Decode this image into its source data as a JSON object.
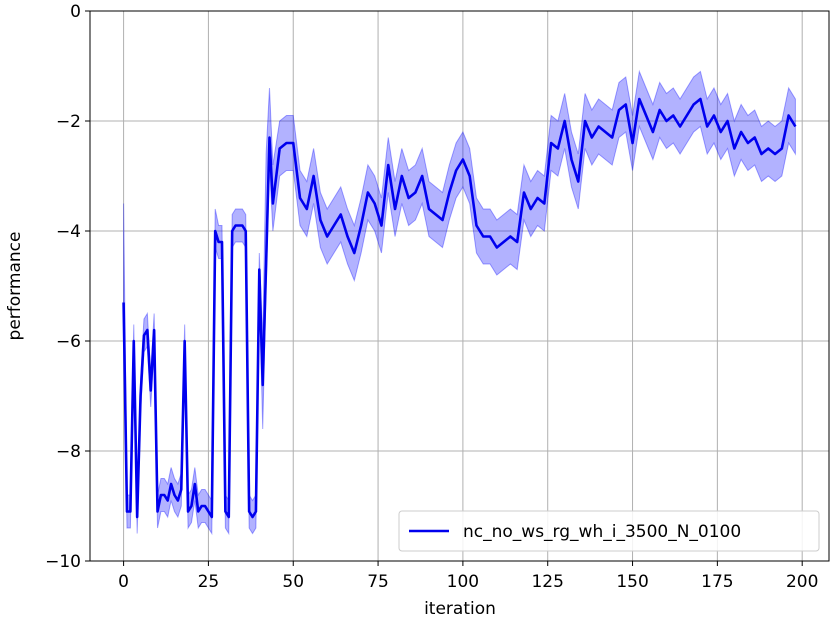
{
  "chart_data": {
    "type": "line",
    "xlabel": "iteration",
    "ylabel": "performance",
    "xlim": [
      -9.9,
      207.9
    ],
    "ylim": [
      -10,
      0
    ],
    "xticks": [
      0,
      25,
      50,
      75,
      100,
      125,
      150,
      175,
      200
    ],
    "yticks": [
      {
        "value": -10,
        "label": "−10"
      },
      {
        "value": -8,
        "label": "−8"
      },
      {
        "value": -6,
        "label": "−6"
      },
      {
        "value": -4,
        "label": "−4"
      },
      {
        "value": -2,
        "label": "−2"
      },
      0
    ],
    "grid": true,
    "legend": "lower right",
    "x": [
      0,
      1,
      2,
      3,
      4,
      5,
      6,
      7,
      8,
      9,
      10,
      11,
      12,
      13,
      14,
      15,
      16,
      17,
      18,
      19,
      20,
      21,
      22,
      23,
      24,
      25,
      26,
      27,
      28,
      29,
      30,
      31,
      32,
      33,
      34,
      35,
      36,
      37,
      38,
      39,
      40,
      41,
      42,
      43,
      44,
      46,
      48,
      50,
      52,
      54,
      56,
      58,
      60,
      62,
      64,
      66,
      68,
      70,
      72,
      74,
      76,
      78,
      80,
      82,
      84,
      86,
      88,
      90,
      92,
      94,
      96,
      98,
      100,
      102,
      104,
      106,
      108,
      110,
      112,
      114,
      116,
      118,
      120,
      122,
      124,
      126,
      128,
      130,
      132,
      134,
      136,
      138,
      140,
      142,
      144,
      146,
      148,
      150,
      152,
      154,
      156,
      158,
      160,
      162,
      164,
      166,
      168,
      170,
      172,
      174,
      176,
      178,
      180,
      182,
      184,
      186,
      188,
      190,
      192,
      194,
      196,
      198
    ],
    "series": [
      {
        "name": "nc_no_ws_rg_wh_i_3500_N_0100",
        "color": "#0000ee",
        "band_color": "#0000ff",
        "values": [
          -5.3,
          -9.1,
          -9.1,
          -6.0,
          -9.2,
          -7.0,
          -5.9,
          -5.8,
          -6.9,
          -5.8,
          -9.1,
          -8.8,
          -8.8,
          -8.9,
          -8.6,
          -8.8,
          -8.9,
          -8.7,
          -6.0,
          -9.1,
          -9.0,
          -8.6,
          -9.1,
          -9.0,
          -9.0,
          -9.1,
          -9.2,
          -4.0,
          -4.2,
          -4.2,
          -9.1,
          -9.2,
          -4.0,
          -3.9,
          -3.9,
          -3.9,
          -4.0,
          -9.1,
          -9.2,
          -9.1,
          -4.7,
          -6.8,
          -4.6,
          -2.3,
          -3.5,
          -2.5,
          -2.4,
          -2.4,
          -3.4,
          -3.6,
          -3.0,
          -3.8,
          -4.1,
          -3.9,
          -3.7,
          -4.1,
          -4.4,
          -3.9,
          -3.3,
          -3.5,
          -3.9,
          -2.8,
          -3.6,
          -3.0,
          -3.4,
          -3.3,
          -3.0,
          -3.6,
          -3.7,
          -3.8,
          -3.3,
          -2.9,
          -2.7,
          -3.0,
          -3.9,
          -4.1,
          -4.1,
          -4.3,
          -4.2,
          -4.1,
          -4.2,
          -3.3,
          -3.6,
          -3.4,
          -3.5,
          -2.4,
          -2.5,
          -2.0,
          -2.7,
          -3.1,
          -2.0,
          -2.3,
          -2.1,
          -2.2,
          -2.3,
          -1.8,
          -1.7,
          -2.4,
          -1.6,
          -1.9,
          -2.2,
          -1.8,
          -2.0,
          -1.9,
          -2.1,
          -1.9,
          -1.7,
          -1.6,
          -2.1,
          -1.9,
          -2.2,
          -2.0,
          -2.5,
          -2.2,
          -2.4,
          -2.3,
          -2.6,
          -2.5,
          -2.6,
          -2.5,
          -1.9,
          -2.1
        ],
        "lower": [
          -5.6,
          -9.4,
          -9.4,
          -6.3,
          -9.5,
          -7.3,
          -6.2,
          -6.1,
          -7.2,
          -6.1,
          -9.4,
          -9.1,
          -9.1,
          -9.2,
          -8.9,
          -9.1,
          -9.2,
          -9.0,
          -6.3,
          -9.4,
          -9.3,
          -8.9,
          -9.4,
          -9.3,
          -9.3,
          -9.4,
          -9.5,
          -4.3,
          -4.5,
          -4.5,
          -9.4,
          -9.5,
          -4.3,
          -4.2,
          -4.2,
          -4.2,
          -4.3,
          -9.4,
          -9.5,
          -9.4,
          -5.0,
          -7.6,
          -5.0,
          -2.8,
          -4.0,
          -3.0,
          -2.9,
          -2.9,
          -3.9,
          -4.1,
          -3.5,
          -4.3,
          -4.6,
          -4.4,
          -4.2,
          -4.6,
          -4.9,
          -4.4,
          -3.8,
          -4.0,
          -4.4,
          -3.3,
          -4.1,
          -3.5,
          -3.9,
          -3.8,
          -3.5,
          -4.1,
          -4.2,
          -4.3,
          -3.8,
          -3.4,
          -3.2,
          -3.5,
          -4.4,
          -4.6,
          -4.6,
          -4.8,
          -4.7,
          -4.6,
          -4.7,
          -3.8,
          -4.1,
          -3.9,
          -4.0,
          -2.9,
          -3.0,
          -2.5,
          -3.2,
          -3.6,
          -2.5,
          -2.8,
          -2.6,
          -2.7,
          -2.8,
          -2.3,
          -2.2,
          -2.9,
          -2.1,
          -2.4,
          -2.7,
          -2.3,
          -2.5,
          -2.4,
          -2.6,
          -2.4,
          -2.2,
          -2.1,
          -2.6,
          -2.4,
          -2.7,
          -2.5,
          -3.0,
          -2.7,
          -2.9,
          -2.8,
          -3.1,
          -3.0,
          -3.1,
          -3.0,
          -2.4,
          -2.6
        ],
        "upper": [
          -3.5,
          -8.8,
          -8.8,
          -5.7,
          -8.9,
          -6.7,
          -5.6,
          -5.5,
          -6.6,
          -5.5,
          -8.8,
          -8.5,
          -8.5,
          -8.6,
          -8.3,
          -8.5,
          -8.6,
          -8.4,
          -5.7,
          -8.8,
          -8.7,
          -8.3,
          -8.8,
          -8.7,
          -8.7,
          -8.8,
          -8.9,
          -3.6,
          -3.9,
          -3.9,
          -8.8,
          -8.9,
          -3.7,
          -3.6,
          -3.6,
          -3.6,
          -3.7,
          -8.8,
          -8.9,
          -8.8,
          -4.4,
          -6.0,
          -2.6,
          -1.4,
          -2.8,
          -2.0,
          -1.9,
          -1.9,
          -2.9,
          -3.1,
          -2.5,
          -3.3,
          -3.6,
          -3.4,
          -3.2,
          -3.6,
          -3.9,
          -3.4,
          -2.8,
          -3.0,
          -3.4,
          -2.3,
          -3.1,
          -2.5,
          -2.9,
          -2.8,
          -2.5,
          -3.1,
          -3.2,
          -3.3,
          -2.8,
          -2.4,
          -2.2,
          -2.5,
          -3.4,
          -3.6,
          -3.6,
          -3.8,
          -3.7,
          -3.6,
          -3.7,
          -2.8,
          -3.1,
          -2.9,
          -3.0,
          -1.9,
          -2.0,
          -1.5,
          -2.2,
          -2.6,
          -1.5,
          -1.8,
          -1.6,
          -1.7,
          -1.8,
          -1.3,
          -1.2,
          -1.9,
          -1.1,
          -1.4,
          -1.7,
          -1.3,
          -1.5,
          -1.4,
          -1.6,
          -1.4,
          -1.2,
          -1.1,
          -1.6,
          -1.4,
          -1.7,
          -1.5,
          -2.0,
          -1.7,
          -1.9,
          -1.8,
          -2.1,
          -2.0,
          -2.1,
          -2.0,
          -1.4,
          -1.6
        ]
      }
    ]
  }
}
